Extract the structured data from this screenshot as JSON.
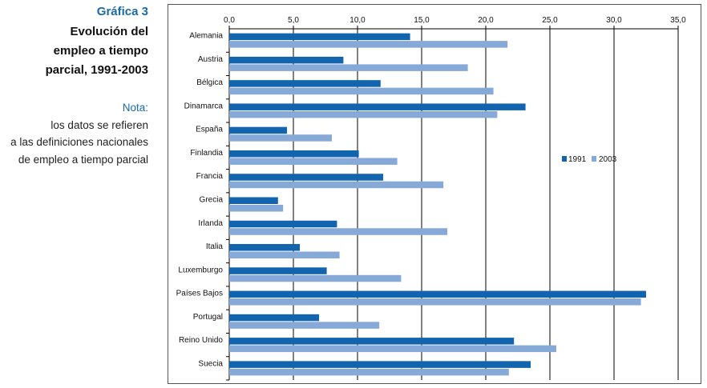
{
  "caption": {
    "label": "Gráfica 3",
    "title_lines": [
      "Evolución del",
      "empleo a  tiempo",
      "parcial, 1991-2003"
    ],
    "note_label": "Nota:",
    "note_line1_rest": " los datos se refieren",
    "note_lines": [
      "a las definiciones nacionales",
      "de empleo a tiempo parcial"
    ]
  },
  "colors": {
    "s1991": "#1164ad",
    "s2003": "#87a9d8",
    "grid": "#000000"
  },
  "chart_data": {
    "type": "bar",
    "orientation": "horizontal",
    "title": "",
    "xlabel": "",
    "ylabel": "",
    "xlim": [
      0,
      35
    ],
    "xticks": [
      0,
      5,
      10,
      15,
      20,
      25,
      30,
      35
    ],
    "xtick_labels": [
      "0,0",
      "5,0",
      "10,0",
      "15,0",
      "20,0",
      "25,0",
      "30,0",
      "35,0"
    ],
    "grid": true,
    "legend_position": "right",
    "categories": [
      "Alemania",
      "Austria",
      "Bélgica",
      "Dinamarca",
      "España",
      "Finlandia",
      "Francia",
      "Grecia",
      "Irlanda",
      "Italia",
      "Luxemburgo",
      "Países Bajos",
      "Portugal",
      "Reino Unido",
      "Suecia"
    ],
    "series": [
      {
        "name": "1991",
        "values": [
          14.1,
          8.9,
          11.8,
          23.1,
          4.5,
          10.1,
          12.0,
          3.8,
          8.4,
          5.5,
          7.6,
          32.5,
          7.0,
          22.2,
          23.5
        ]
      },
      {
        "name": "2003",
        "values": [
          21.7,
          18.6,
          20.6,
          20.9,
          8.0,
          13.1,
          16.7,
          4.2,
          17.0,
          8.6,
          13.4,
          32.1,
          11.7,
          25.5,
          21.8
        ]
      }
    ]
  }
}
